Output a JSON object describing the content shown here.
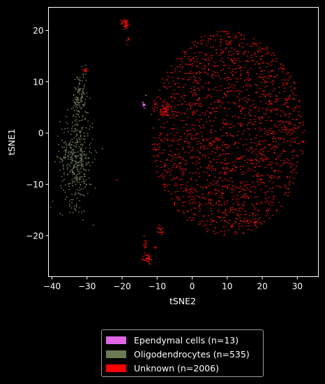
{
  "chart_data": {
    "type": "scatter",
    "title": "",
    "xlabel": "tSNE2",
    "ylabel": "tSNE1",
    "xlim": [
      -41,
      36
    ],
    "ylim": [
      -28,
      24.5
    ],
    "xticks": [
      -40,
      -30,
      -20,
      -10,
      0,
      10,
      20,
      30
    ],
    "yticks": [
      -20,
      -10,
      0,
      10,
      20
    ],
    "grid": false,
    "legend_position": "bottom-center",
    "series": [
      {
        "name": "Ependymal cells (n=13)",
        "color": "#e066e6",
        "count": 13,
        "clusters": [
          {
            "cx": -13.8,
            "cy": 5.6,
            "sx": 0.25,
            "sy": 0.3,
            "n": 12
          },
          {
            "cx": -13.2,
            "cy": 7.4,
            "sx": 0.05,
            "sy": 0.05,
            "n": 1
          }
        ]
      },
      {
        "name": "Oligodendrocytes (n=535)",
        "color": "#6b7a52",
        "count": 535,
        "clusters": [
          {
            "cx": -33.0,
            "cy": -5.0,
            "sx": 2.3,
            "sy": 4.5,
            "n": 420
          },
          {
            "cx": -32.0,
            "cy": 7.0,
            "sx": 1.0,
            "sy": 2.5,
            "n": 115
          }
        ]
      },
      {
        "name": "Unknown (n=2006)",
        "color": "#ff0000",
        "count": 2006,
        "clusters": [
          {
            "cx": 10.0,
            "cy": 0.0,
            "rx": 22.0,
            "ry": 20.0,
            "n": 1820,
            "shape": "disk"
          },
          {
            "cx": -19.0,
            "cy": 21.3,
            "sx": 0.6,
            "sy": 0.5,
            "n": 40
          },
          {
            "cx": -18.3,
            "cy": 18.0,
            "sx": 0.2,
            "sy": 0.5,
            "n": 6
          },
          {
            "cx": -12.7,
            "cy": -24.6,
            "sx": 0.5,
            "sy": 0.5,
            "n": 40
          },
          {
            "cx": -13.5,
            "cy": -21.5,
            "sx": 0.25,
            "sy": 1.0,
            "n": 12
          },
          {
            "cx": -9.0,
            "cy": -19.0,
            "sx": 0.4,
            "sy": 0.5,
            "n": 16
          },
          {
            "cx": -10.5,
            "cy": -22.3,
            "sx": 0.2,
            "sy": 0.2,
            "n": 4
          },
          {
            "cx": -8.0,
            "cy": 4.2,
            "sx": 0.7,
            "sy": 0.5,
            "n": 30
          },
          {
            "cx": -30.5,
            "cy": 12.3,
            "sx": 0.5,
            "sy": 0.2,
            "n": 12
          },
          {
            "cx": -21.5,
            "cy": -9.3,
            "sx": 0.1,
            "sy": 0.1,
            "n": 1
          },
          {
            "cx": 15.0,
            "cy": -16.0,
            "sx": 3.0,
            "sy": 2.0,
            "n": 25
          }
        ]
      }
    ]
  }
}
